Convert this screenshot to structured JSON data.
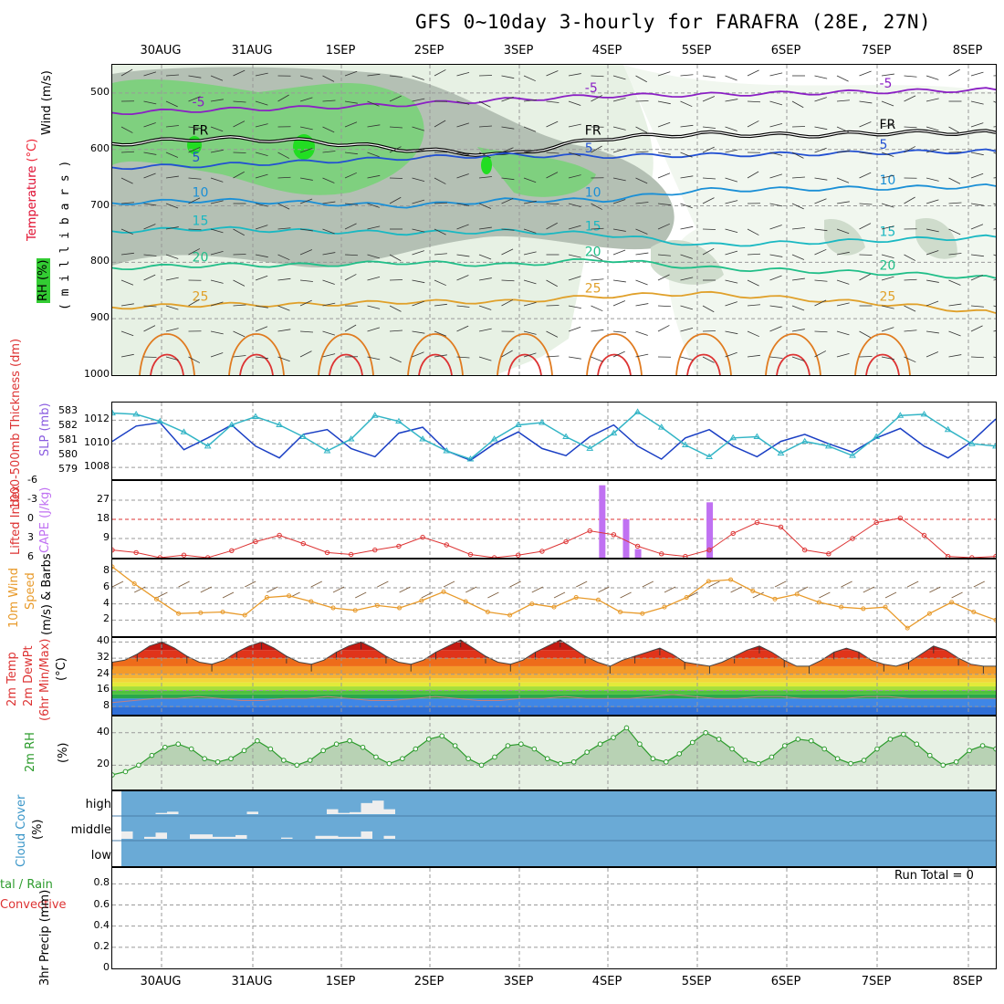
{
  "title": "GFS 0~10day 3-hourly for FARAFRA (28E, 27N)",
  "date_labels": [
    "30AUG",
    "31AUG",
    "1SEP",
    "2SEP",
    "3SEP",
    "4SEP",
    "5SEP",
    "6SEP",
    "7SEP",
    "8SEP"
  ],
  "colors": {
    "axis": "#000000",
    "grid": "#999999",
    "rh_green": "#7fd07f",
    "rh_bright": "#22dd22",
    "rh_grey": "#b4c0b4",
    "rh_light": "#e7f1e4",
    "slp": "#1a3fc4",
    "thickness": "#33b5c6",
    "lifted": "#dd3333",
    "cape": "#c071f2",
    "wind": "#e89a2a",
    "rh2m": "#2c9b2c",
    "cloud": "#6aaad6"
  },
  "labels": {
    "panel1_wind": "Wind (m/s)",
    "panel1_temp": "Temperature (°C)",
    "panel1_rh": "RH (%)",
    "panel1_mb": "( m i l l i b a r s )",
    "panel2_thick": "1000-500mb Thickness (dm)",
    "panel2_slp": "SLP (mb)",
    "panel3_li": "Lifted Index",
    "panel3_cape": "CAPE (J/kg)",
    "panel4_a": "10m Wind",
    "panel4_b": "Speed",
    "panel4_c": "(m/s) & Barbs",
    "panel5_a": "2m Temp",
    "panel5_b": "2m DewPt",
    "panel5_c": "(6hr Min/Max)",
    "panel5_d": "(°C)",
    "panel6_a": "2m RH",
    "panel6_b": "(%)",
    "panel7_a": "Cloud Cover",
    "panel7_b": "(%)",
    "panel8_a": "tal / Rain",
    "panel8_b": "Convective",
    "panel8_c": "3hr Precip (mm)",
    "run_total": "Run Total = 0"
  },
  "chart_data": [
    {
      "type": "contour",
      "name": "upper-air cross section",
      "ylabel": "millibars",
      "y_ticks": [
        "500",
        "600",
        "700",
        "800",
        "900",
        "1000"
      ],
      "temperature_contours": [
        {
          "label": "-5",
          "color": "#8a1fc4",
          "pressure": [
            535,
            530,
            526,
            520,
            512,
            505,
            503,
            500,
            497,
            494
          ]
        },
        {
          "label": "FR",
          "color": "#000000",
          "pressure": [
            590,
            580,
            585,
            600,
            610,
            580,
            572,
            575,
            570,
            570
          ]
        },
        {
          "label": "5",
          "color": "#2250d2",
          "pressure": [
            632,
            628,
            622,
            615,
            610,
            612,
            610,
            608,
            605,
            603
          ]
        },
        {
          "label": "10",
          "color": "#1a8fd6",
          "pressure": [
            695,
            690,
            695,
            700,
            690,
            690,
            672,
            670,
            668,
            665
          ]
        },
        {
          "label": "15",
          "color": "#19b8c2",
          "pressure": [
            745,
            740,
            745,
            748,
            745,
            750,
            770,
            765,
            760,
            755
          ]
        },
        {
          "label": "20",
          "color": "#20be88",
          "pressure": [
            810,
            805,
            805,
            800,
            805,
            795,
            810,
            815,
            820,
            828
          ]
        },
        {
          "label": "25",
          "color": "#e0a02a",
          "pressure": [
            880,
            875,
            875,
            870,
            870,
            860,
            855,
            865,
            875,
            890
          ]
        }
      ],
      "rh_levels": [
        "30",
        "50",
        "70",
        "90"
      ],
      "wind_label": "Wind (m/s)"
    },
    {
      "type": "line",
      "name": "SLP and thickness",
      "series": [
        {
          "name": "SLP (mb)",
          "color": "#1a3fc4",
          "values": [
            1010.2,
            1011.5,
            1011.8,
            1009.5,
            1010.5,
            1011.6,
            1009.8,
            1008.8,
            1010.8,
            1011.2,
            1009.6,
            1008.9,
            1010.9,
            1011.4,
            1009.4,
            1008.6,
            1010.0,
            1011.0,
            1009.6,
            1009.0,
            1010.6,
            1011.6,
            1009.8,
            1008.7,
            1010.5,
            1011.2,
            1009.8,
            1008.9,
            1010.2,
            1010.8,
            1010.0,
            1009.3,
            1010.5,
            1011.3,
            1009.8,
            1008.8,
            1010.2,
            1012.1
          ]
        },
        {
          "name": "Thickness (dm)",
          "color": "#33b5c6",
          "values": [
            1012.6,
            1012.5,
            1011.9,
            1011.0,
            1009.8,
            1011.6,
            1012.3,
            1011.6,
            1010.6,
            1009.4,
            1010.4,
            1012.4,
            1011.9,
            1010.4,
            1009.4,
            1008.7,
            1010.4,
            1011.6,
            1011.8,
            1010.6,
            1009.6,
            1010.9,
            1012.7,
            1011.4,
            1009.9,
            1008.9,
            1010.5,
            1010.6,
            1009.2,
            1010.2,
            1009.8,
            1009.0,
            1010.6,
            1012.4,
            1012.5,
            1011.2,
            1010.0,
            1009.8
          ]
        }
      ],
      "y_ticks_right": [
        "1008",
        "1010",
        "1012"
      ],
      "y_ticks_left": [
        "579",
        "580",
        "581",
        "582",
        "583"
      ]
    },
    {
      "type": "bar+line",
      "name": "Lifted index and CAPE",
      "lifted_index": [
        4.8,
        5.2,
        6.0,
        5.6,
        6.0,
        4.9,
        3.5,
        2.5,
        3.8,
        5.2,
        5.5,
        4.8,
        4.2,
        2.8,
        4.0,
        5.5,
        6.0,
        5.6,
        5.0,
        3.5,
        1.8,
        2.4,
        4.2,
        5.4,
        5.8,
        4.8,
        2.2,
        0.5,
        1.2,
        4.8,
        5.4,
        3.0,
        0.5,
        -0.2,
        2.5,
        5.8,
        6.0,
        5.8
      ],
      "cape_bars": [
        {
          "time": 20.5,
          "value": 34
        },
        {
          "time": 21.5,
          "value": 18
        },
        {
          "time": 22.0,
          "value": 4
        },
        {
          "time": 25.0,
          "value": 26
        }
      ],
      "li_ticks": [
        "-6",
        "-3",
        "0",
        "3",
        "6"
      ],
      "cape_ticks": [
        "9",
        "18",
        "27"
      ]
    },
    {
      "type": "line",
      "name": "10m wind speed",
      "values": [
        8.6,
        6.5,
        4.6,
        2.8,
        2.9,
        3.0,
        2.6,
        4.8,
        5.0,
        4.3,
        3.5,
        3.2,
        3.8,
        3.5,
        4.4,
        5.5,
        4.3,
        3.0,
        2.6,
        4.0,
        3.6,
        4.8,
        4.5,
        3.0,
        2.8,
        3.6,
        4.8,
        6.8,
        7.0,
        5.6,
        4.6,
        5.2,
        4.2,
        3.6,
        3.4,
        3.6,
        1.0,
        2.8,
        4.2,
        3.0,
        2.0
      ],
      "y_ticks": [
        "2",
        "4",
        "6",
        "8"
      ],
      "ylabel": "(m/s)"
    },
    {
      "type": "area",
      "name": "2m temperature",
      "values": [
        30,
        31,
        34,
        38,
        40,
        37,
        33,
        30,
        29,
        31,
        35,
        38,
        40,
        37,
        33,
        30,
        29,
        31,
        35,
        38,
        40,
        37,
        33,
        30,
        29,
        31,
        35,
        38,
        41,
        37,
        33,
        30,
        29,
        31,
        35,
        38,
        41,
        37,
        33,
        30,
        28,
        31,
        33,
        35,
        37,
        34,
        30,
        29,
        28,
        30,
        33,
        36,
        38,
        35,
        31,
        28,
        28,
        31,
        35,
        37,
        35,
        31,
        29,
        28,
        30,
        34,
        38,
        36,
        32,
        29,
        28,
        28
      ],
      "dewpoint": [
        10,
        11,
        12,
        12,
        13,
        12,
        11,
        11,
        12,
        12,
        13,
        12,
        11,
        11,
        12,
        13,
        12,
        11,
        11,
        12,
        12,
        13,
        12,
        12,
        12,
        13,
        14,
        13,
        12,
        12,
        13,
        13,
        12,
        12,
        12,
        13,
        13,
        12,
        12,
        12,
        12,
        12
      ],
      "y_ticks": [
        "8",
        "16",
        "24",
        "32",
        "40"
      ]
    },
    {
      "type": "area",
      "name": "2m RH",
      "values": [
        14,
        16,
        20,
        26,
        31,
        33,
        30,
        24,
        22,
        24,
        29,
        35,
        30,
        23,
        20,
        23,
        29,
        33,
        35,
        31,
        25,
        21,
        24,
        30,
        36,
        38,
        32,
        24,
        20,
        25,
        32,
        33,
        30,
        24,
        21,
        22,
        28,
        33,
        37,
        43,
        33,
        24,
        22,
        27,
        34,
        40,
        36,
        30,
        23,
        21,
        25,
        32,
        36,
        35,
        30,
        24,
        21,
        23,
        30,
        36,
        39,
        33,
        26,
        20,
        22,
        29,
        32,
        30
      ],
      "y_ticks": [
        "20",
        "40"
      ]
    },
    {
      "type": "bar",
      "name": "Cloud cover",
      "levels": [
        "high",
        "middle",
        "low"
      ],
      "high_values": [
        0,
        0,
        0,
        5,
        10,
        0,
        0,
        0,
        0,
        0,
        0,
        10,
        0,
        0,
        0,
        0,
        0,
        0,
        20,
        5,
        8,
        45,
        55,
        20,
        0,
        0,
        0,
        0,
        0,
        0,
        0,
        0,
        0,
        0,
        0,
        0,
        0
      ],
      "mid_values": [
        30,
        0,
        8,
        25,
        0,
        0,
        18,
        18,
        8,
        8,
        15,
        0,
        0,
        0,
        5,
        0,
        0,
        12,
        12,
        8,
        8,
        30,
        0,
        12,
        0,
        0,
        0,
        0,
        0,
        0,
        0,
        0,
        0,
        0,
        0,
        0,
        0
      ]
    },
    {
      "type": "bar",
      "name": "3hr precip",
      "ylabel": "3hr Precip (mm)",
      "values": [],
      "y_ticks": [
        "0",
        "0.2",
        "0.4",
        "0.6",
        "0.8"
      ]
    }
  ]
}
